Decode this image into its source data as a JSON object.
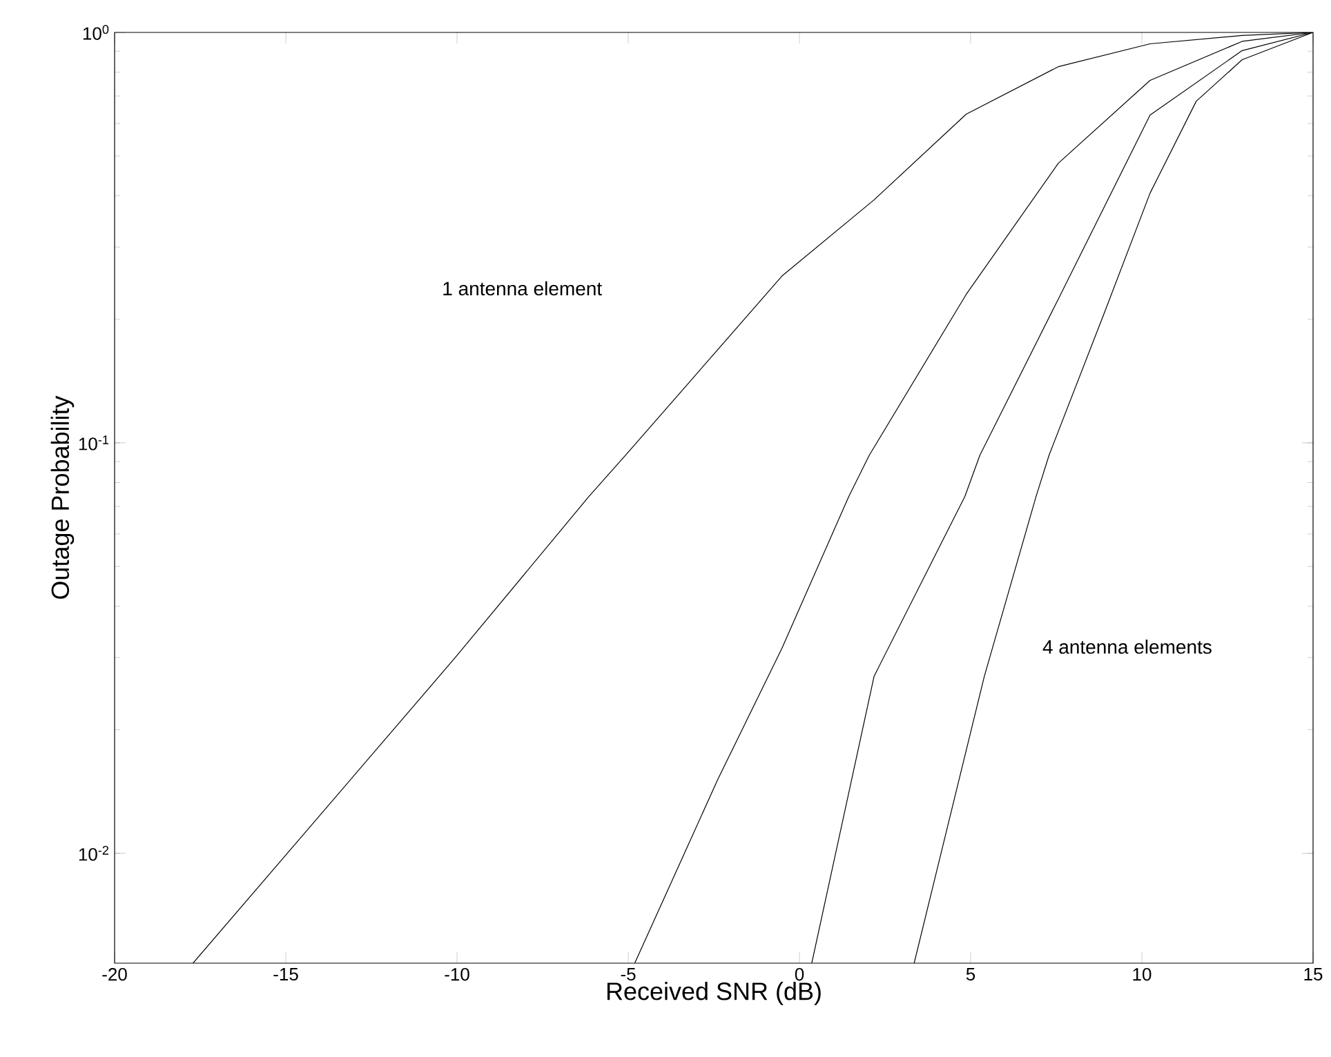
{
  "chart_data": {
    "type": "line",
    "xlabel": "Received SNR (dB)",
    "ylabel": "Outage Probability",
    "xlim": [
      -20,
      15
    ],
    "xticks": [
      -20,
      -15,
      -10,
      -5,
      0,
      5,
      10,
      15
    ],
    "ylim": [
      0.0054,
      1
    ],
    "yticks": [
      {
        "value": 0.01,
        "label": "10$^{-2}$"
      },
      {
        "value": 0.1,
        "label": "10$^{-1}$"
      },
      {
        "value": 1,
        "label": "10$^{0}$"
      }
    ],
    "log": "y",
    "grid": false,
    "line_style": "solid",
    "annotations": [
      "1 antenna element",
      "4 antenna elements"
    ],
    "series": [
      {
        "color": "#000000",
        "x": [
          -17.71,
          -10.05,
          -6.15,
          -5.08,
          -3.2,
          -0.51,
          2.18,
          4.87,
          7.56,
          10.24,
          12.93,
          15
        ],
        "values": [
          0.0054,
          0.03,
          0.074,
          0.0933,
          0.141,
          0.255,
          0.391,
          0.632,
          0.825,
          0.938,
          0.983,
          1
        ]
      },
      {
        "color": "#000000",
        "x": [
          -4.81,
          -3.2,
          -2.39,
          -0.51,
          1.44,
          2.04,
          4.87,
          7.56,
          10.24,
          12.93,
          15
        ],
        "values": [
          0.0054,
          0.0107,
          0.0151,
          0.0316,
          0.074,
          0.0933,
          0.23,
          0.48,
          0.764,
          0.951,
          1
        ]
      },
      {
        "color": "#000000",
        "x": [
          0.36,
          2.18,
          4.83,
          5.27,
          7.56,
          10.24,
          12.93,
          15
        ],
        "values": [
          0.0054,
          0.027,
          0.074,
          0.0933,
          0.224,
          0.629,
          0.903,
          1
        ]
      },
      {
        "color": "#000000",
        "x": [
          3.35,
          5.4,
          6.91,
          7.29,
          8.9,
          10.24,
          11.59,
          12.93,
          15
        ],
        "values": [
          0.0054,
          0.027,
          0.074,
          0.0933,
          0.207,
          0.406,
          0.68,
          0.858,
          1
        ]
      }
    ]
  }
}
